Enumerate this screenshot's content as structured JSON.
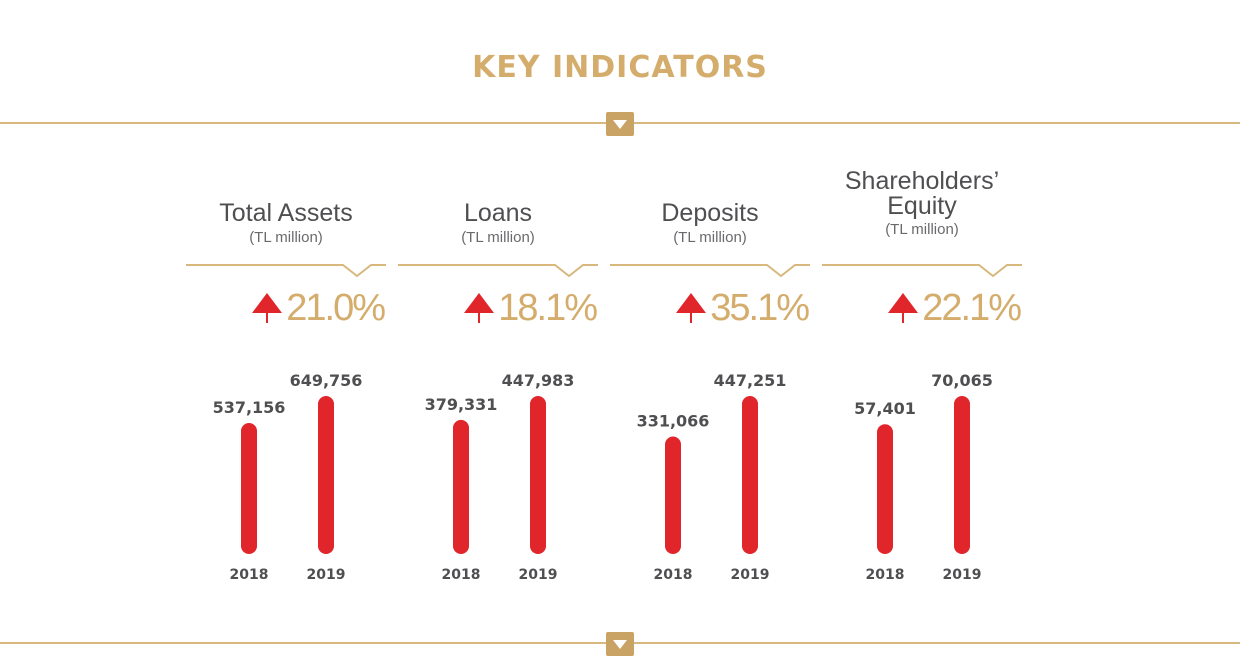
{
  "title": "KEY INDICATORS",
  "colors": {
    "accent": "#d4ad6c",
    "bar": "#e0252b",
    "text": "#4f4f52"
  },
  "icons": {
    "divider_marker": "chevron-down-icon",
    "growth_indicator": "up-arrow-icon"
  },
  "chart_data": [
    {
      "type": "bar",
      "title": "Total Assets",
      "unit": "(TL million)",
      "growth": "21.0%",
      "categories": [
        "2018",
        "2019"
      ],
      "values": [
        537156,
        649756
      ],
      "value_labels": [
        "537,156",
        "649,756"
      ]
    },
    {
      "type": "bar",
      "title": "Loans",
      "unit": "(TL million)",
      "growth": "18.1%",
      "categories": [
        "2018",
        "2019"
      ],
      "values": [
        379331,
        447983
      ],
      "value_labels": [
        "379,331",
        "447,983"
      ]
    },
    {
      "type": "bar",
      "title": "Deposits",
      "unit": "(TL million)",
      "growth": "35.1%",
      "categories": [
        "2018",
        "2019"
      ],
      "values": [
        331066,
        447251
      ],
      "value_labels": [
        "331,066",
        "447,251"
      ]
    },
    {
      "type": "bar",
      "title": "Shareholders’ Equity",
      "title_lines": [
        "Shareholders’",
        "Equity"
      ],
      "unit": "(TL million)",
      "growth": "22.1%",
      "categories": [
        "2018",
        "2019"
      ],
      "values": [
        57401,
        70065
      ],
      "value_labels": [
        "57,401",
        "70,065"
      ]
    }
  ]
}
